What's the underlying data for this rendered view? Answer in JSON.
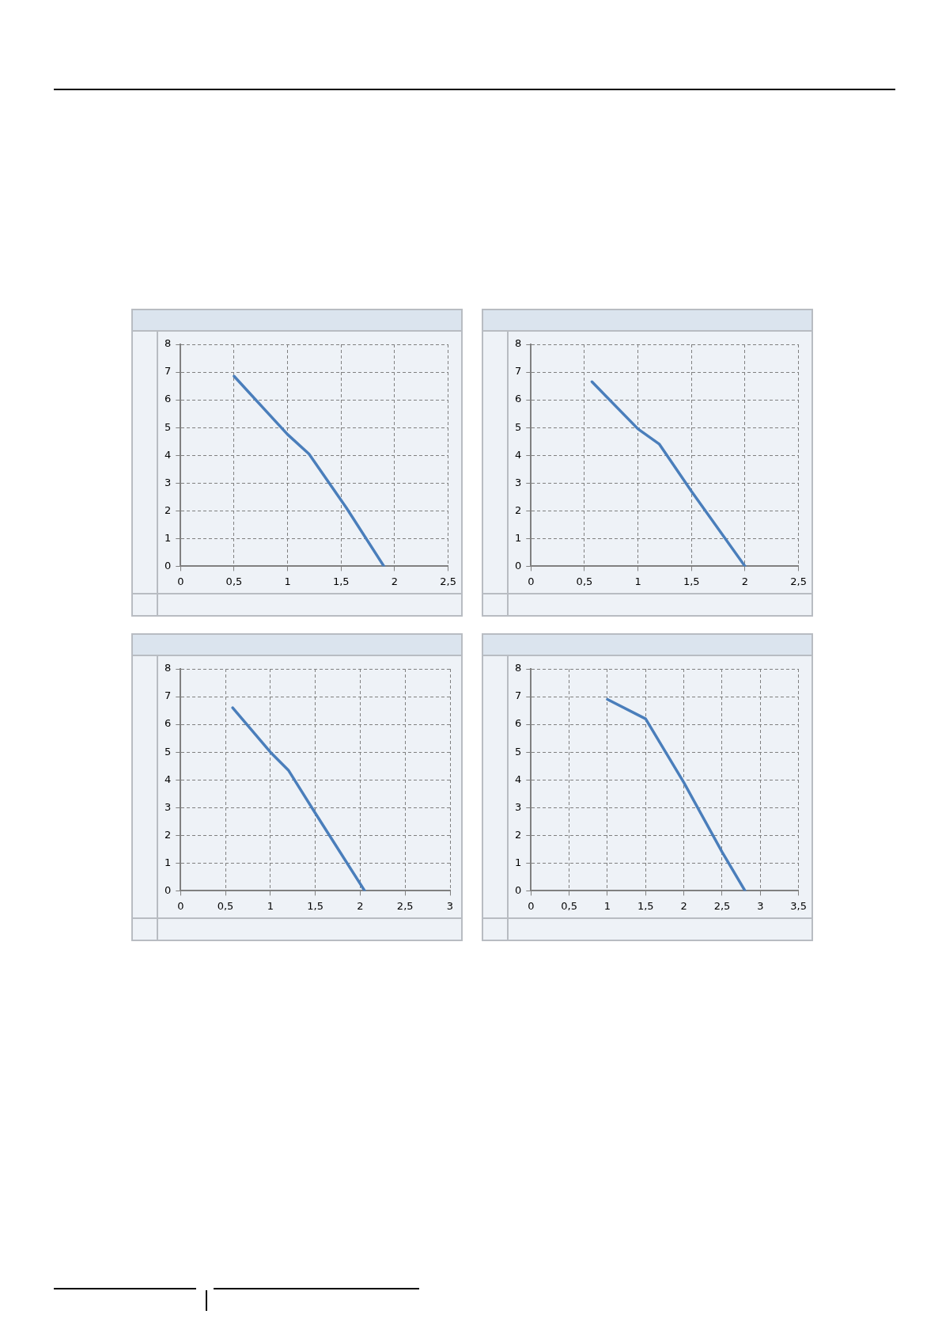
{
  "chart_data": [
    {
      "type": "line",
      "x": [
        0.5,
        1.0,
        1.2,
        1.55,
        1.9
      ],
      "values": [
        6.85,
        4.75,
        4.05,
        2.1,
        0
      ],
      "color": "#4a7ebb",
      "xlim": [
        0,
        2.5
      ],
      "xticks": [
        0,
        {
          "value": 0.5,
          "label": "0,5"
        },
        1,
        {
          "value": 1.5,
          "label": "1,5"
        },
        2,
        {
          "value": 2.5,
          "label": "2,5"
        }
      ],
      "ylim": [
        0,
        8
      ],
      "yticks": [
        0,
        1,
        2,
        3,
        4,
        5,
        6,
        7,
        8
      ],
      "grid": true,
      "marker": "none",
      "line_style": "solid"
    },
    {
      "type": "line",
      "x": [
        0.57,
        1.0,
        1.2,
        1.5,
        2.0
      ],
      "values": [
        6.65,
        4.95,
        4.4,
        2.7,
        0
      ],
      "color": "#4a7ebb",
      "xlim": [
        0,
        2.5
      ],
      "xticks": [
        0,
        {
          "value": 0.5,
          "label": "0,5"
        },
        1,
        {
          "value": 1.5,
          "label": "1,5"
        },
        2,
        {
          "value": 2.5,
          "label": "2,5"
        }
      ],
      "ylim": [
        0,
        8
      ],
      "yticks": [
        0,
        1,
        2,
        3,
        4,
        5,
        6,
        7,
        8
      ],
      "grid": true,
      "marker": "none",
      "line_style": "solid"
    },
    {
      "type": "line",
      "x": [
        0.58,
        1.0,
        1.2,
        1.5,
        2.05
      ],
      "values": [
        6.6,
        5.0,
        4.35,
        2.8,
        0
      ],
      "color": "#4a7ebb",
      "xlim": [
        0,
        3
      ],
      "xticks": [
        0,
        {
          "value": 0.5,
          "label": "0,5"
        },
        1,
        {
          "value": 1.5,
          "label": "1,5"
        },
        2,
        {
          "value": 2.5,
          "label": "2,5"
        },
        3
      ],
      "ylim": [
        0,
        8
      ],
      "yticks": [
        0,
        1,
        2,
        3,
        4,
        5,
        6,
        7,
        8
      ],
      "grid": true,
      "marker": "none",
      "line_style": "solid"
    },
    {
      "type": "line",
      "x": [
        1.0,
        1.5,
        2.0,
        2.5,
        2.8
      ],
      "values": [
        6.9,
        6.2,
        3.9,
        1.4,
        0
      ],
      "color": "#4a7ebb",
      "xlim": [
        0,
        3.5
      ],
      "xticks": [
        0,
        {
          "value": 0.5,
          "label": "0,5"
        },
        1,
        {
          "value": 1.5,
          "label": "1,5"
        },
        2,
        {
          "value": 2.5,
          "label": "2,5"
        },
        3,
        {
          "value": 3.5,
          "label": "3,5"
        }
      ],
      "ylim": [
        0,
        8
      ],
      "yticks": [
        0,
        1,
        2,
        3,
        4,
        5,
        6,
        7,
        8
      ],
      "grid": true,
      "marker": "none",
      "line_style": "solid"
    }
  ]
}
